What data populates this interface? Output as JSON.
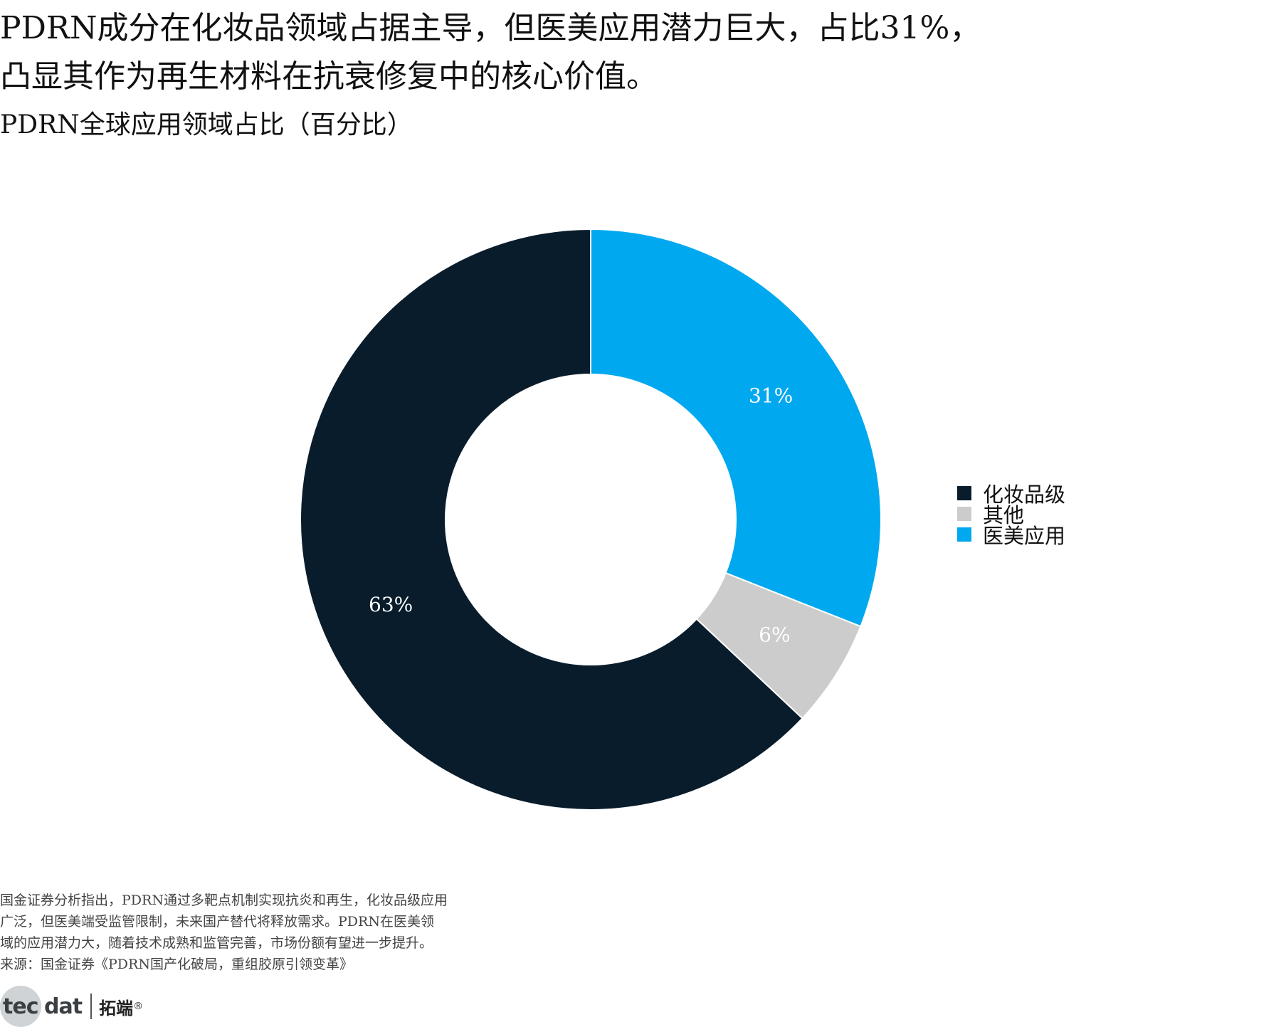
{
  "title": {
    "line1": "PDRN成分在化妆品领域占据主导，但医美应用潜力巨大，占比31%，",
    "line2": "凸显其作为再生材料在抗衰修复中的核心价值。"
  },
  "subtitle": "PDRN全球应用领域占比（百分比）",
  "chart_data": {
    "type": "pie",
    "donut": true,
    "title": "PDRN全球应用领域占比（百分比）",
    "categories": [
      "医美应用",
      "其他",
      "化妆品级"
    ],
    "values": [
      31,
      6,
      63
    ],
    "data_labels": [
      "31%",
      "6%",
      "63%"
    ],
    "colors": [
      "#00a8f0",
      "#cccccc",
      "#091c2b"
    ],
    "legend_order": [
      "化妆品级",
      "其他",
      "医美应用"
    ],
    "legend_placement": "right"
  },
  "legend": [
    {
      "label": "化妆品级",
      "color": "#091c2b"
    },
    {
      "label": "其他",
      "color": "#cccccc"
    },
    {
      "label": "医美应用",
      "color": "#00a8f0"
    }
  ],
  "note": {
    "lines": [
      "国金证券分析指出，PDRN通过多靶点机制实现抗炎和再生，化妆品级应用",
      "广泛，但医美端受监管限制，未来国产替代将释放需求。PDRN在医美领",
      "域的应用潜力大，随着技术成熟和监管完善，市场份额有望进一步提升。",
      "来源：国金证券《PDRN国产化破局，重组胶原引领变革》"
    ]
  },
  "logo": {
    "word_left": "tec",
    "word_right": "dat",
    "cn": "拓端",
    "reg": "®"
  }
}
